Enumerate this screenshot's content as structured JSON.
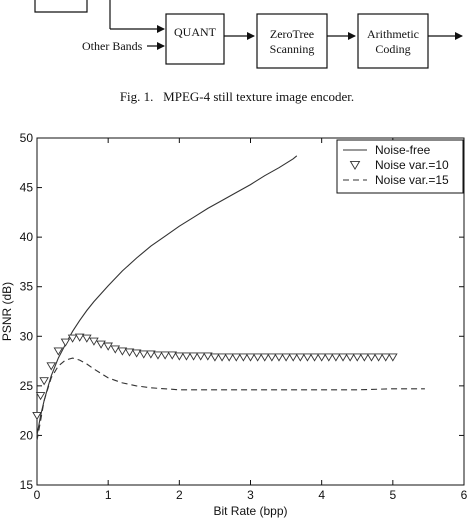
{
  "diagram": {
    "other_bands_label": "Other Bands",
    "quant_label": "QUANT",
    "zerotree_line1": "ZeroTree",
    "zerotree_line2": "Scanning",
    "arith_line1": "Arithmetic",
    "arith_line2": "Coding"
  },
  "caption": {
    "figure_label": "Fig. 1.",
    "text": "MPEG-4 still texture image encoder."
  },
  "chart_data": {
    "type": "line",
    "title": "",
    "xlabel": "Bit Rate (bpp)",
    "ylabel": "PSNR (dB)",
    "xlim": [
      0,
      6
    ],
    "ylim": [
      15,
      50
    ],
    "x_ticks": [
      0,
      1,
      2,
      3,
      4,
      5,
      6
    ],
    "y_ticks": [
      15,
      20,
      25,
      30,
      35,
      40,
      45,
      50
    ],
    "grid": false,
    "legend_position": "top-right",
    "series": [
      {
        "name": "Noise-free",
        "style": "solid",
        "color": "#333333",
        "x": [
          0.0,
          0.05,
          0.1,
          0.15,
          0.2,
          0.3,
          0.4,
          0.5,
          0.6,
          0.7,
          0.8,
          0.9,
          1.0,
          1.2,
          1.4,
          1.6,
          1.8,
          2.0,
          2.2,
          2.4,
          2.6,
          2.8,
          3.0,
          3.2,
          3.4,
          3.6,
          3.65
        ],
        "y": [
          20.0,
          22.0,
          23.5,
          24.8,
          26.0,
          27.8,
          29.2,
          30.5,
          31.6,
          32.6,
          33.5,
          34.3,
          35.1,
          36.6,
          37.9,
          39.1,
          40.1,
          41.1,
          42.0,
          42.9,
          43.7,
          44.5,
          45.3,
          46.2,
          47.0,
          47.9,
          48.2
        ]
      },
      {
        "name": "Noise var.=10",
        "style": "triangle-down markers",
        "color": "#333333",
        "x": [
          0.0,
          0.05,
          0.1,
          0.2,
          0.3,
          0.4,
          0.5,
          0.6,
          0.7,
          0.8,
          0.9,
          1.0,
          1.1,
          1.2,
          1.3,
          1.4,
          1.5,
          1.6,
          1.7,
          1.8,
          1.9,
          2.0,
          2.1,
          2.2,
          2.3,
          2.4,
          2.5,
          2.6,
          2.7,
          2.8,
          2.9,
          3.0,
          3.1,
          3.2,
          3.3,
          3.4,
          3.5,
          3.6,
          3.7,
          3.8,
          3.9,
          4.0,
          4.1,
          4.2,
          4.3,
          4.4,
          4.5,
          4.6,
          4.7,
          4.8,
          4.9,
          5.0
        ],
        "y": [
          22.0,
          24.0,
          25.5,
          27.0,
          28.5,
          29.4,
          29.8,
          29.9,
          29.8,
          29.5,
          29.2,
          29.0,
          28.7,
          28.5,
          28.4,
          28.3,
          28.2,
          28.2,
          28.1,
          28.1,
          28.1,
          28.0,
          28.0,
          28.0,
          28.0,
          28.0,
          27.9,
          27.9,
          27.9,
          27.9,
          27.9,
          27.9,
          27.9,
          27.9,
          27.9,
          27.9,
          27.9,
          27.9,
          27.9,
          27.9,
          27.9,
          27.9,
          27.9,
          27.9,
          27.9,
          27.9,
          27.9,
          27.9,
          27.9,
          27.9,
          27.9,
          27.9
        ]
      },
      {
        "name": "Noise var.=15",
        "style": "dashed",
        "color": "#333333",
        "x": [
          0.0,
          0.05,
          0.1,
          0.2,
          0.3,
          0.4,
          0.5,
          0.6,
          0.7,
          0.8,
          1.0,
          1.2,
          1.4,
          1.6,
          1.8,
          2.0,
          2.5,
          3.0,
          3.5,
          4.0,
          4.5,
          5.0,
          5.45
        ],
        "y": [
          19.5,
          21.5,
          23.5,
          25.8,
          27.0,
          27.6,
          27.8,
          27.6,
          27.2,
          26.7,
          25.8,
          25.3,
          25.0,
          24.8,
          24.7,
          24.6,
          24.6,
          24.6,
          24.6,
          24.6,
          24.6,
          24.7,
          24.7
        ]
      }
    ]
  }
}
